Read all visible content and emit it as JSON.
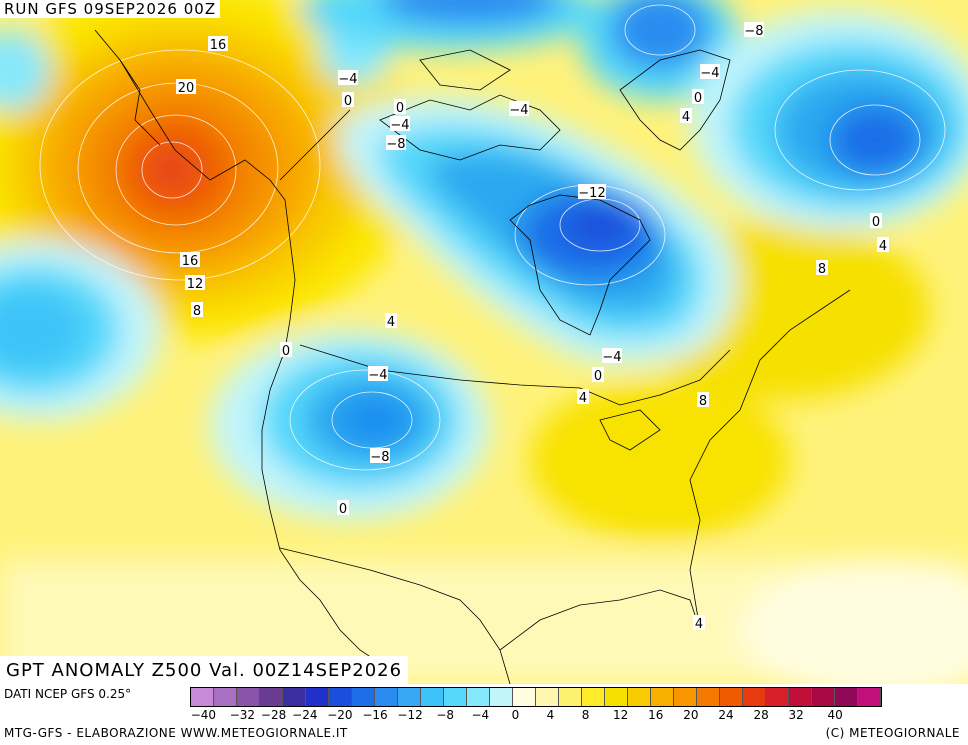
{
  "header": {
    "run": "RUN GFS 09SEP2026 00Z"
  },
  "footer_title": "GPT ANOMALY Z500 Val. 00Z14SEP2026",
  "footer": {
    "source": "DATI NCEP GFS 0.25°",
    "credit_left": "MTG-GFS - ELABORAZIONE WWW.METEOGIORNALE.IT",
    "credit_right": "(C) METEOGIORNALE"
  },
  "colorbar": {
    "ticks": [
      "-40",
      "-32",
      "-28",
      "-24",
      "-20",
      "-16",
      "-12",
      "-8",
      "-4",
      "0",
      "4",
      "8",
      "12",
      "16",
      "20",
      "24",
      "28",
      "32",
      "40"
    ],
    "colors": [
      "#c68ad8",
      "#a96fc3",
      "#8a54ab",
      "#6a3b93",
      "#3a2fa0",
      "#2030c8",
      "#1a4fdc",
      "#1e6ee8",
      "#2a8cf0",
      "#38a8f5",
      "#3ec3f8",
      "#55d8fa",
      "#86e8fb",
      "#c2f5fb",
      "#fffde0",
      "#fff6b0",
      "#fff170",
      "#ffeb2a",
      "#f6e000",
      "#f8cc00",
      "#f8b000",
      "#f89600",
      "#f47a00",
      "#f05a00",
      "#e83a10",
      "#d8202a",
      "#c0103a",
      "#a80a48",
      "#900858",
      "#c0107a"
    ]
  },
  "contour_labels": [
    {
      "text": "16"
    },
    {
      "text": "20"
    },
    {
      "text": "16"
    },
    {
      "text": "12"
    },
    {
      "text": "8"
    },
    {
      "text": "-4"
    },
    {
      "text": "0"
    },
    {
      "text": "0"
    },
    {
      "text": "-4"
    },
    {
      "text": "-8"
    },
    {
      "text": "-4"
    },
    {
      "text": "-12"
    },
    {
      "text": "-8"
    },
    {
      "text": "-4"
    },
    {
      "text": "0"
    },
    {
      "text": "4"
    },
    {
      "text": "0"
    },
    {
      "text": "4"
    },
    {
      "text": "8"
    },
    {
      "text": "4"
    },
    {
      "text": "0"
    },
    {
      "text": "-4"
    },
    {
      "text": "-8"
    },
    {
      "text": "0"
    },
    {
      "text": "-4"
    },
    {
      "text": "0"
    },
    {
      "text": "4"
    },
    {
      "text": "8"
    },
    {
      "text": "4"
    }
  ]
}
